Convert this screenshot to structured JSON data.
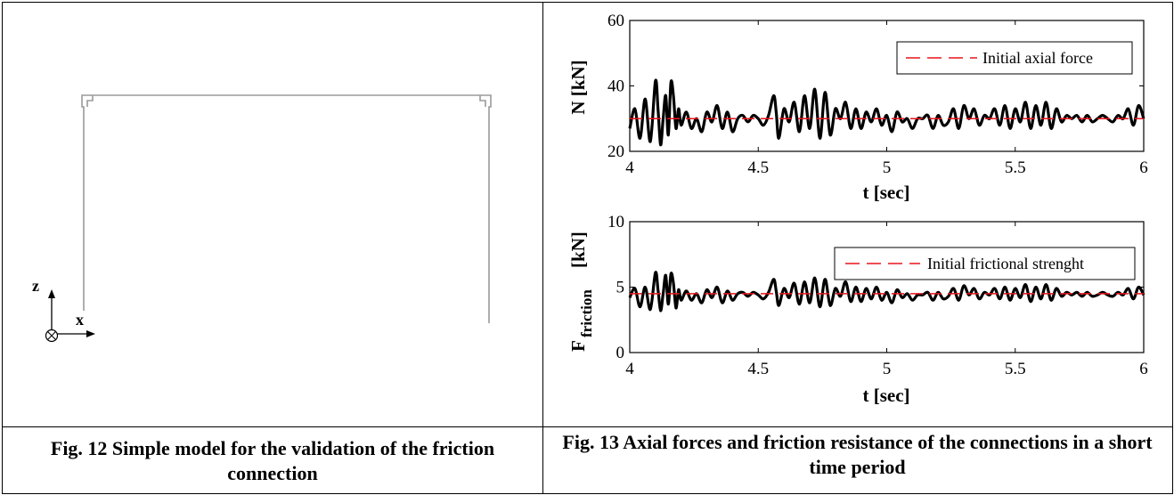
{
  "captions": {
    "left": "Fig. 12 Simple model for the validation of the friction connection",
    "right": "Fig. 13 Axial forces and friction resistance of the connections in a short time period"
  },
  "model": {
    "axis_z": "z",
    "axis_x": "x",
    "line_color": "#9a9a9a"
  },
  "colors": {
    "response": "#000000",
    "reference": "#e8141b"
  },
  "chart_data": [
    {
      "type": "line",
      "xlabel": "t [sec]",
      "ylabel": "N [kN]",
      "xlim": [
        4,
        6
      ],
      "ylim": [
        20,
        60
      ],
      "xticks": [
        "4",
        "4.5",
        "5",
        "5.5",
        "6"
      ],
      "yticks": [
        "20",
        "40",
        "60"
      ],
      "legend_position": "top-right",
      "grid": false,
      "series": [
        {
          "name": "",
          "style": "solid",
          "x": [
            4.0,
            4.02,
            4.04,
            4.06,
            4.08,
            4.1,
            4.11,
            4.12,
            4.13,
            4.14,
            4.15,
            4.16,
            4.17,
            4.18,
            4.19,
            4.2,
            4.22,
            4.24,
            4.26,
            4.28,
            4.3,
            4.32,
            4.34,
            4.36,
            4.38,
            4.4,
            4.42,
            4.44,
            4.46,
            4.48,
            4.5,
            4.52,
            4.54,
            4.56,
            4.57,
            4.58,
            4.6,
            4.62,
            4.64,
            4.66,
            4.68,
            4.7,
            4.72,
            4.74,
            4.76,
            4.78,
            4.8,
            4.82,
            4.84,
            4.86,
            4.88,
            4.9,
            4.92,
            4.94,
            4.96,
            4.98,
            5.0,
            5.02,
            5.04,
            5.06,
            5.08,
            5.1,
            5.12,
            5.14,
            5.16,
            5.18,
            5.2,
            5.22,
            5.24,
            5.26,
            5.28,
            5.3,
            5.32,
            5.34,
            5.36,
            5.38,
            5.4,
            5.42,
            5.44,
            5.46,
            5.48,
            5.5,
            5.52,
            5.54,
            5.56,
            5.58,
            5.6,
            5.62,
            5.64,
            5.66,
            5.68,
            5.7,
            5.72,
            5.74,
            5.76,
            5.78,
            5.8,
            5.82,
            5.84,
            5.86,
            5.88,
            5.9,
            5.92,
            5.94,
            5.96,
            5.98,
            6.0
          ],
          "y": [
            27,
            33,
            24,
            36,
            23,
            41.5,
            33,
            22,
            30,
            37,
            25,
            41,
            37,
            27,
            33,
            28,
            32,
            27,
            30,
            26,
            32,
            29,
            34,
            27,
            32,
            26,
            30,
            31,
            29,
            31,
            30,
            28,
            31,
            37,
            32,
            24,
            33,
            29,
            35,
            26,
            37,
            27,
            39,
            24,
            38,
            25,
            33,
            30,
            35,
            27,
            33,
            27,
            32,
            29,
            33,
            28,
            31,
            26,
            32,
            29,
            30,
            27,
            30,
            30,
            31,
            27,
            31,
            28,
            29,
            33,
            27,
            34,
            30,
            33,
            28,
            31,
            30,
            33,
            28,
            34,
            27,
            33,
            29,
            35,
            27,
            34,
            28,
            35,
            27,
            33,
            29,
            31,
            30,
            31,
            29,
            31,
            29,
            30,
            31,
            30,
            29,
            31,
            30,
            33,
            28,
            34,
            30
          ]
        },
        {
          "name": "Initial axial force",
          "style": "dashed",
          "x": [
            4,
            6
          ],
          "y": [
            30,
            30
          ]
        }
      ]
    },
    {
      "type": "line",
      "xlabel": "t [sec]",
      "ylabel": "F",
      "ylabel_sub": "friction",
      "ylabel_unit": "[kN]",
      "xlim": [
        4,
        6
      ],
      "ylim": [
        0,
        10
      ],
      "xticks": [
        "4",
        "4.5",
        "5",
        "5.5",
        "6"
      ],
      "yticks": [
        "0",
        "5",
        "10"
      ],
      "legend_position": "top-right",
      "grid": false,
      "series": [
        {
          "name": "",
          "style": "solid",
          "x": [
            4.0,
            4.02,
            4.04,
            4.06,
            4.08,
            4.1,
            4.11,
            4.12,
            4.13,
            4.14,
            4.15,
            4.16,
            4.17,
            4.18,
            4.19,
            4.2,
            4.22,
            4.24,
            4.26,
            4.28,
            4.3,
            4.32,
            4.34,
            4.36,
            4.38,
            4.4,
            4.42,
            4.44,
            4.46,
            4.48,
            4.5,
            4.52,
            4.54,
            4.56,
            4.57,
            4.58,
            4.6,
            4.62,
            4.64,
            4.66,
            4.68,
            4.7,
            4.72,
            4.74,
            4.76,
            4.78,
            4.8,
            4.82,
            4.84,
            4.86,
            4.88,
            4.9,
            4.92,
            4.94,
            4.96,
            4.98,
            5.0,
            5.02,
            5.04,
            5.06,
            5.08,
            5.1,
            5.12,
            5.14,
            5.16,
            5.18,
            5.2,
            5.22,
            5.24,
            5.26,
            5.28,
            5.3,
            5.32,
            5.34,
            5.36,
            5.38,
            5.4,
            5.42,
            5.44,
            5.46,
            5.48,
            5.5,
            5.52,
            5.54,
            5.56,
            5.58,
            5.6,
            5.62,
            5.64,
            5.66,
            5.68,
            5.7,
            5.72,
            5.74,
            5.76,
            5.78,
            5.8,
            5.82,
            5.84,
            5.86,
            5.88,
            5.9,
            5.92,
            5.94,
            5.96,
            5.98,
            6.0
          ],
          "y": [
            4.2,
            4.9,
            3.5,
            5.0,
            3.3,
            6.1,
            4.8,
            3.2,
            4.5,
            5.9,
            3.7,
            6.0,
            5.3,
            3.4,
            4.8,
            4.0,
            4.7,
            4.0,
            4.5,
            3.8,
            4.8,
            4.2,
            5.0,
            3.8,
            4.7,
            4.0,
            4.5,
            4.6,
            4.3,
            4.6,
            4.4,
            4.1,
            4.6,
            5.6,
            4.7,
            3.6,
            4.9,
            4.2,
            5.3,
            3.7,
            5.4,
            3.8,
            5.7,
            3.5,
            5.6,
            3.6,
            4.9,
            4.3,
            5.4,
            3.9,
            5.0,
            3.9,
            4.9,
            4.1,
            5.0,
            4.0,
            4.6,
            3.8,
            4.8,
            4.2,
            4.5,
            4.0,
            4.4,
            4.4,
            4.6,
            4.0,
            4.6,
            4.1,
            4.3,
            4.9,
            4.0,
            5.1,
            4.4,
            4.9,
            4.1,
            4.6,
            4.4,
            4.9,
            4.1,
            5.0,
            4.0,
            4.9,
            4.2,
            5.2,
            3.9,
            5.0,
            4.1,
            5.2,
            4.0,
            4.9,
            4.3,
            4.6,
            4.4,
            4.6,
            4.3,
            4.6,
            4.3,
            4.4,
            4.6,
            4.4,
            4.3,
            4.6,
            4.4,
            4.9,
            4.1,
            5.0,
            4.4
          ]
        },
        {
          "name": "Initial frictional strenght",
          "style": "dashed",
          "x": [
            4,
            6
          ],
          "y": [
            4.5,
            4.5
          ]
        }
      ]
    }
  ]
}
